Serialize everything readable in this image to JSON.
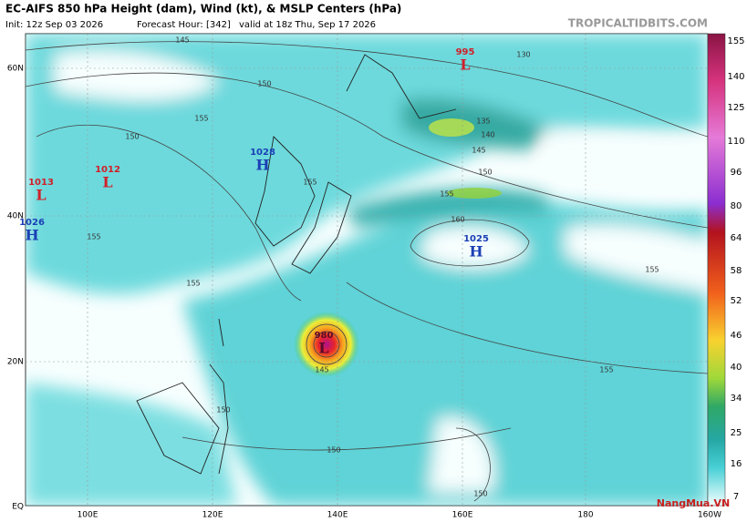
{
  "header": {
    "title": "EC-AIFS 850 hPa Height (dam), Wind (kt), & MSLP Centers (hPa)",
    "init": "Init: 12z Sep 03 2026",
    "forecast": "Forecast Hour: [342]",
    "valid": "valid at 18z Thu, Sep 17 2026",
    "source": "TROPICALTIDBITS.COM"
  },
  "map": {
    "lat_labels": [
      "60N",
      "40N",
      "20N",
      "EQ"
    ],
    "lon_labels": [
      "100E",
      "120E",
      "140E",
      "160E",
      "180",
      "160W"
    ],
    "centers": [
      {
        "pressure": "995",
        "type": "L"
      },
      {
        "pressure": "1028",
        "type": "H"
      },
      {
        "pressure": "1012",
        "type": "L"
      },
      {
        "pressure": "1013",
        "type": "L"
      },
      {
        "pressure": "1026",
        "type": "H"
      },
      {
        "pressure": "1025",
        "type": "H"
      },
      {
        "pressure": "980",
        "type": "L"
      }
    ],
    "contour_labels": [
      "145",
      "150",
      "155",
      "150",
      "155",
      "155",
      "155",
      "160",
      "155",
      "150",
      "140",
      "135",
      "145",
      "130",
      "155",
      "155",
      "150",
      "150",
      "150",
      "145"
    ]
  },
  "colorbar": {
    "labels": [
      155,
      140,
      125,
      110,
      96,
      80,
      64,
      58,
      52,
      46,
      40,
      34,
      25,
      16,
      7
    ]
  },
  "watermark": "NangMua.VN"
}
